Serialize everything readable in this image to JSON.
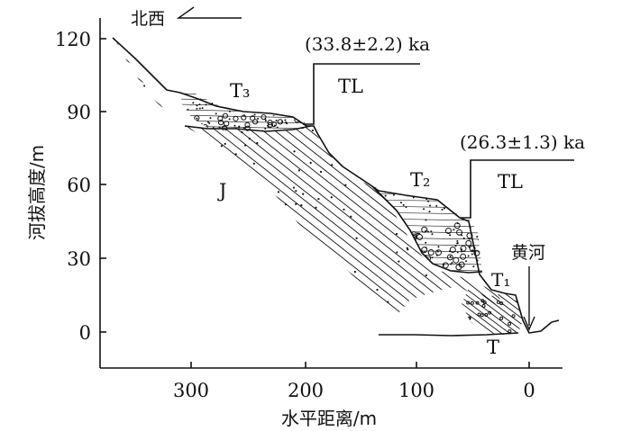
{
  "axes": {
    "x_label": "水平距离/m",
    "y_label": "河拔高度/m",
    "x_ticks": [
      "300",
      "200",
      "100",
      "0"
    ],
    "y_ticks": [
      "120",
      "90",
      "60",
      "30",
      "0"
    ]
  },
  "orientation": {
    "label": "北西"
  },
  "terraces": {
    "t3": "T₃",
    "t2": "T₂",
    "t1": "T₁",
    "j": "J",
    "t": "T"
  },
  "samples": {
    "upper": {
      "age": "(33.8±2.2) ka",
      "label": "TL"
    },
    "lower": {
      "age": "(26.3±1.3) ka",
      "label": "TL"
    }
  },
  "river": {
    "label": "黄河"
  },
  "colors": {
    "ink": "#111111",
    "background": "#ffffff"
  }
}
